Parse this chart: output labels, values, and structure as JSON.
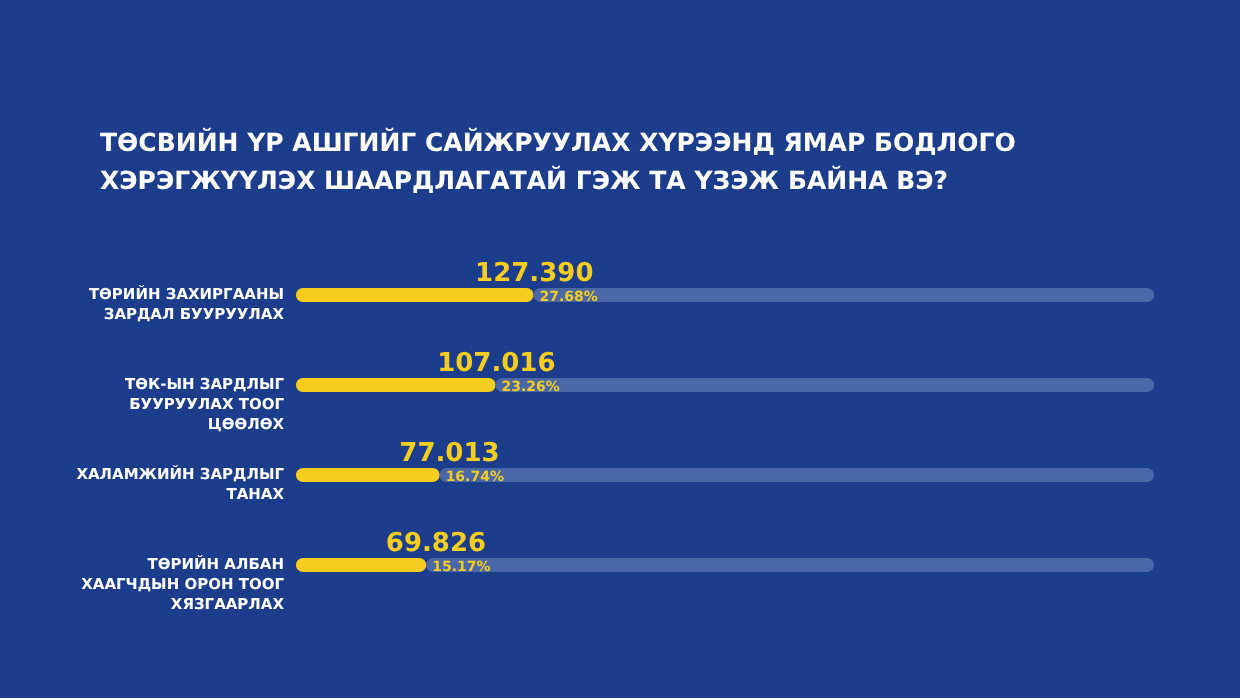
{
  "chart_data": {
    "type": "bar",
    "orientation": "horizontal",
    "stacked": true,
    "title": "ТӨСВИЙН ҮР АШГИЙГ САЙЖРУУЛАХ ХҮРЭЭНД ЯМАР БОДЛОГО ХЭРЭГЖҮҮЛЭХ ШААРДЛАГАТАЙ ГЭЖ ТА ҮЗЭЖ БАЙНА ВЭ?",
    "categories": [
      "ТӨРИЙН ЗАХИРГААНЫ ЗАРДАЛ БУУРУУЛАХ",
      "ТӨК-ЫН ЗАРДЛЫГ БУУРУУЛАХ ТООГ ЦӨӨЛӨХ",
      "ХАЛАМЖИЙН ЗАРДЛЫГ ТАНАХ",
      "ТӨРИЙН АЛБАН ХААГЧДЫН ОРОН ТООГ ХЯЗГААРЛАХ"
    ],
    "series": [
      {
        "color": "#f5cd1e",
        "values": [
          27.68,
          23.26,
          16.74,
          15.17
        ],
        "value_labels": [
          "27.68%",
          "23.26%",
          "16.74%",
          "15.17%"
        ]
      },
      {
        "color": "#4a68a8",
        "values": [
          72.32,
          76.74,
          83.26,
          84.83
        ]
      }
    ],
    "xlim": [
      0,
      100
    ],
    "tick_labels": false,
    "grid": false,
    "legend": false,
    "annotations": [
      "127.390",
      "107.016",
      "77.013",
      "69.826"
    ]
  }
}
